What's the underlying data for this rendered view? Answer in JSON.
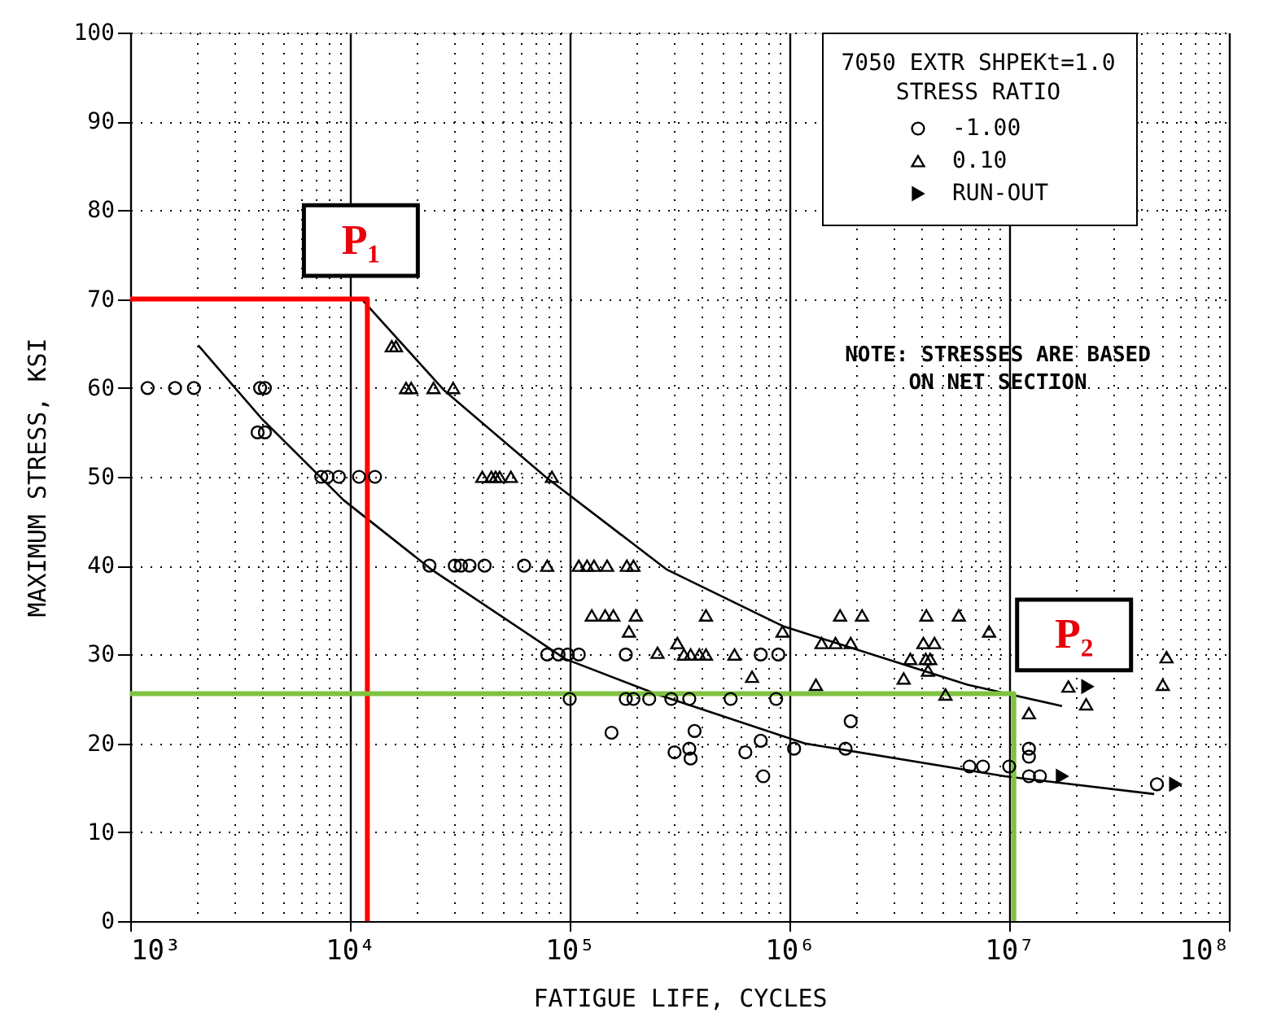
{
  "chart_data": {
    "type": "scatter",
    "xlabel": "FATIGUE LIFE, CYCLES",
    "ylabel": "MAXIMUM STRESS, KSI",
    "legend_title": "7050 EXTR SHPEKt=1.0\nSTRESS RATIO",
    "log": "x",
    "grid": true,
    "legend": "top right",
    "xlim": [
      1000,
      100000000
    ],
    "ylim": [
      0,
      100
    ],
    "xticks": [
      {
        "value": 1000,
        "label": "10³"
      },
      {
        "value": 10000,
        "label": "10⁴"
      },
      {
        "value": 100000,
        "label": "10⁵"
      },
      {
        "value": 1000000,
        "label": "10⁶"
      },
      {
        "value": 10000000,
        "label": "10⁷"
      },
      {
        "value": 100000000,
        "label": "10⁸"
      }
    ],
    "yticks": [
      0,
      10,
      20,
      30,
      40,
      50,
      60,
      70,
      80,
      90,
      100
    ],
    "series": [
      {
        "name": "-1.00",
        "marker": "circle",
        "color": "#000000",
        "x": [
          1200,
          1600,
          1950,
          3900,
          4100,
          3800,
          4100,
          7400,
          7900,
          8900,
          11000,
          13000,
          23000,
          30000,
          32000,
          35000,
          41000,
          62000,
          79000,
          89000,
          98000,
          110000,
          180000,
          740000,
          890000,
          100000,
          180000,
          195000,
          230000,
          290000,
          350000,
          540000,
          870000,
          1900000,
          155000,
          370000,
          300000,
          350000,
          355000,
          630000,
          740000,
          1050000,
          760000,
          1800000,
          6600000,
          7600000,
          10000000,
          12300000,
          12300000,
          12300000,
          13800000,
          47000000
        ],
        "values": [
          60,
          60,
          60,
          60,
          60,
          55,
          55,
          50,
          50,
          50,
          50,
          50,
          40,
          40,
          40,
          40,
          40,
          40,
          30,
          30,
          30,
          30,
          30,
          30,
          30,
          25,
          25,
          25,
          25,
          25,
          25,
          25,
          25,
          22.5,
          21.2,
          21.4,
          19,
          19.4,
          18.3,
          19,
          20.3,
          19.4,
          16.3,
          19.4,
          17.4,
          17.4,
          17.4,
          19.4,
          18.5,
          16.3,
          16.3,
          15.4
        ]
      },
      {
        "name": "0.10",
        "marker": "triangle",
        "color": "#000000",
        "x": [
          15500,
          16200,
          18000,
          19000,
          24000,
          29500,
          40000,
          44000,
          46000,
          48000,
          54000,
          83000,
          79000,
          110000,
          120000,
          129000,
          148000,
          182000,
          195000,
          126000,
          145000,
          158000,
          200000,
          417000,
          1700000,
          2140000,
          4200000,
          5900000,
          186000,
          930000,
          8100000,
          309000,
          1400000,
          1620000,
          1900000,
          4070000,
          4570000,
          251000,
          331000,
          355000,
          389000,
          417000,
          562000,
          3550000,
          4170000,
          4370000,
          52000000,
          4270000,
          676000,
          3310000,
          1320000,
          50000000,
          5130000,
          12300000,
          18600000,
          22400000
        ],
        "values": [
          64.7,
          64.7,
          60,
          60,
          60,
          60,
          50,
          50,
          50,
          50,
          50,
          50,
          40,
          40,
          40,
          40,
          40,
          40,
          40,
          34.4,
          34.4,
          34.4,
          34.4,
          34.4,
          34.4,
          34.4,
          34.4,
          34.4,
          32.6,
          32.6,
          32.6,
          31.3,
          31.3,
          31.3,
          31.3,
          31.3,
          31.3,
          30.2,
          30,
          30,
          30,
          30,
          30,
          29.5,
          29.5,
          29.5,
          29.7,
          28.2,
          27.5,
          27.3,
          26.6,
          26.6,
          25.5,
          23.4,
          26.4,
          24.4
        ]
      },
      {
        "name": "RUN-OUT",
        "marker": "triangle",
        "color": "#000000",
        "x": [
          17400000,
          57000000,
          22700000
        ],
        "values": [
          16.3,
          15.4,
          26.4
        ]
      },
      {
        "type": "line",
        "color": "#000000",
        "x": [
          11500,
          26900,
          77600,
          275000,
          933000,
          6460000,
          17400000
        ],
        "values": [
          69.8,
          59.7,
          50,
          39.6,
          33.2,
          26.6,
          24.2
        ]
      },
      {
        "type": "line",
        "color": "#000000",
        "x": [
          2040,
          3980,
          9330,
          23400,
          95500,
          251000,
          1170000,
          9550000,
          45700000
        ],
        "values": [
          64.8,
          56.5,
          47.4,
          39.6,
          29.5,
          25.5,
          20,
          16.3,
          14.3
        ]
      },
      {
        "type": "line",
        "color": "#ff0000",
        "x": [
          1000,
          12000,
          12000
        ],
        "values": [
          70,
          70,
          0
        ]
      },
      {
        "type": "line",
        "color": "#7fc241",
        "x": [
          1000,
          10500000,
          10500000
        ],
        "values": [
          25.6,
          25.6,
          0
        ]
      }
    ],
    "annotations": [
      "NOTE: STRESSES ARE BASED\nON NET SECTION",
      {
        "text": "P₁",
        "x": 12000,
        "y": 70
      },
      {
        "text": "P₂",
        "x": 10500000,
        "y": 25.6
      }
    ]
  }
}
